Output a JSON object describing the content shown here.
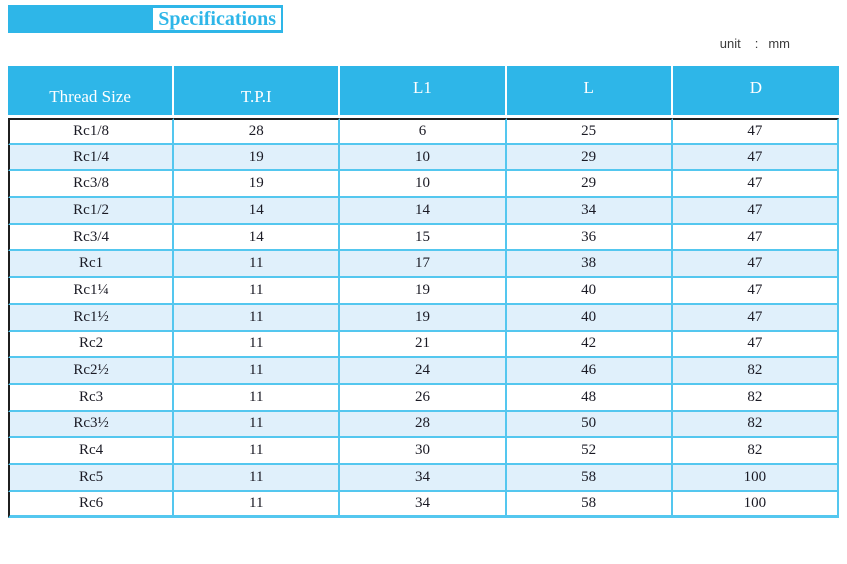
{
  "title": "Specifications",
  "unit": {
    "label": "unit",
    "separator": ":",
    "value": "mm"
  },
  "colors": {
    "accent": "#2eb6e8",
    "grid": "#54c7ef",
    "row_alt": "#e0f0fb",
    "dark": "#1f1f1f",
    "text": "#1a1a24",
    "unit_text": "#3c3c3c"
  },
  "table": {
    "columns": [
      "Thread Size",
      "T.P.I",
      "L1",
      "L",
      "D"
    ],
    "rows": [
      [
        "Rc1/8",
        "28",
        "6",
        "25",
        "47"
      ],
      [
        "Rc1/4",
        "19",
        "10",
        "29",
        "47"
      ],
      [
        "Rc3/8",
        "19",
        "10",
        "29",
        "47"
      ],
      [
        "Rc1/2",
        "14",
        "14",
        "34",
        "47"
      ],
      [
        "Rc3/4",
        "14",
        "15",
        "36",
        "47"
      ],
      [
        "Rc1",
        "11",
        "17",
        "38",
        "47"
      ],
      [
        "Rc1¼",
        "11",
        "19",
        "40",
        "47"
      ],
      [
        "Rc1½",
        "11",
        "19",
        "40",
        "47"
      ],
      [
        "Rc2",
        "11",
        "21",
        "42",
        "47"
      ],
      [
        "Rc2½",
        "11",
        "24",
        "46",
        "82"
      ],
      [
        "Rc3",
        "11",
        "26",
        "48",
        "82"
      ],
      [
        "Rc3½",
        "11",
        "28",
        "50",
        "82"
      ],
      [
        "Rc4",
        "11",
        "30",
        "52",
        "82"
      ],
      [
        "Rc5",
        "11",
        "34",
        "58",
        "100"
      ],
      [
        "Rc6",
        "11",
        "34",
        "58",
        "100"
      ]
    ]
  }
}
